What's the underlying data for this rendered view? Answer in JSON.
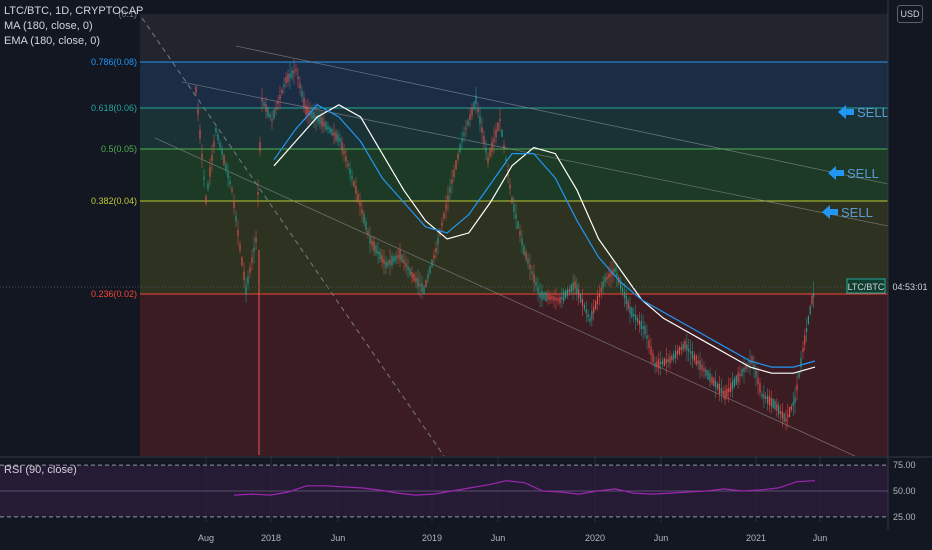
{
  "symbol_legend": "LTC/BTC, 1D, CRYPTOCAP",
  "indicators": [
    "MA (180, close, 0)",
    "EMA (180, close, 0)"
  ],
  "currency_button": "USD",
  "rsi_label": "RSI (90, close)",
  "price_tag": {
    "symbol": "LTC/BTC",
    "countdown": "04:53:01"
  },
  "colors": {
    "background": "#131722",
    "ma": "#ffffff",
    "ema": "#2196f3",
    "rsi": "#9c27b0",
    "sell": "#2196f3"
  },
  "chart_data": [
    {
      "type": "line",
      "title": "LTC/BTC, 1D, CRYPTOCAP",
      "x_ticks": [
        "Aug",
        "2018",
        "Jun",
        "2019",
        "Jun",
        "2020",
        "Jun",
        "2021",
        "Jun"
      ],
      "fib_levels": [
        {
          "label": "0.786(0.08)",
          "value": 0.786,
          "color": "#2196f3"
        },
        {
          "label": "0.618(0.06)",
          "value": 0.618,
          "color": "#26a69a"
        },
        {
          "label": "0.5(0.05)",
          "value": 0.5,
          "color": "#4caf50"
        },
        {
          "label": "0.382(0.04)",
          "value": 0.382,
          "color": "#c0ca33"
        },
        {
          "label": "0.236(0.02)",
          "value": 0.236,
          "color": "#f44336"
        }
      ],
      "top_level_label": "(0.1)",
      "annotations": [
        "SELL",
        "SELL",
        "SELL"
      ],
      "series": [
        {
          "name": "MA (180, close, 0)",
          "values": [
            0.42,
            0.46,
            0.5,
            0.52,
            0.5,
            0.44,
            0.38,
            0.33,
            0.3,
            0.31,
            0.36,
            0.42,
            0.45,
            0.44,
            0.38,
            0.3,
            0.25,
            0.2,
            0.17,
            0.15,
            0.13,
            0.11,
            0.09,
            0.08,
            0.08,
            0.09
          ]
        },
        {
          "name": "EMA (180, close, 0)",
          "values": [
            0.43,
            0.48,
            0.52,
            0.5,
            0.46,
            0.4,
            0.36,
            0.32,
            0.31,
            0.34,
            0.39,
            0.44,
            0.44,
            0.4,
            0.33,
            0.27,
            0.23,
            0.2,
            0.18,
            0.16,
            0.14,
            0.12,
            0.1,
            0.09,
            0.09,
            0.1
          ]
        }
      ]
    },
    {
      "type": "line",
      "title": "RSI (90, close)",
      "y_ticks": [
        "75.00",
        "50.00",
        "25.00"
      ],
      "ylim": [
        20,
        80
      ],
      "series": [
        {
          "name": "RSI (90, close)",
          "values": [
            46,
            47,
            46,
            49,
            55,
            55,
            54,
            53,
            51,
            48,
            46,
            47,
            50,
            53,
            56,
            60,
            58,
            50,
            49,
            47,
            50,
            52,
            48,
            47,
            48,
            49,
            50,
            52,
            50,
            51,
            53,
            59,
            60
          ]
        }
      ]
    }
  ]
}
